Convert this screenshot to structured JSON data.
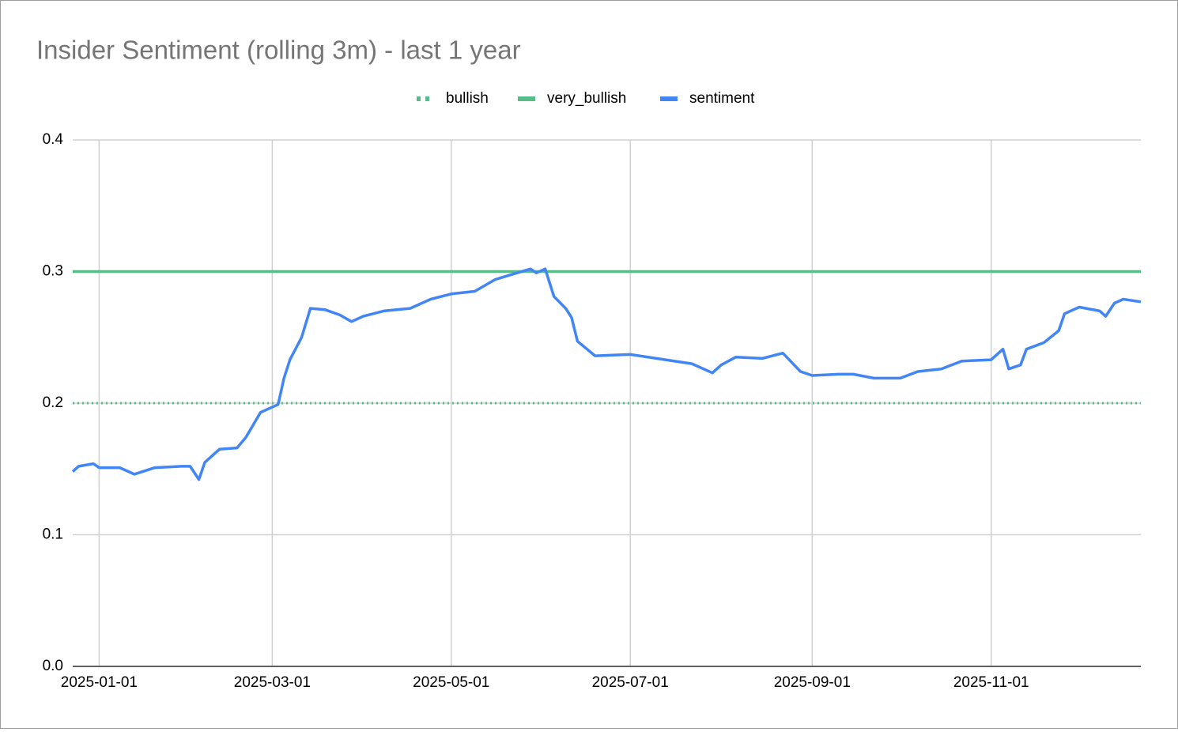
{
  "chart_data": {
    "type": "line",
    "title": "Insider Sentiment (rolling 3m) - last 1 year",
    "x": [
      "2024-12-23",
      "2024-12-25",
      "2024-12-30",
      "2025-01-01",
      "2025-01-08",
      "2025-01-13",
      "2025-01-20",
      "2025-01-29",
      "2025-02-01",
      "2025-02-04",
      "2025-02-06",
      "2025-02-11",
      "2025-02-17",
      "2025-02-20",
      "2025-02-25",
      "2025-03-03",
      "2025-03-05",
      "2025-03-07",
      "2025-03-11",
      "2025-03-14",
      "2025-03-19",
      "2025-03-24",
      "2025-03-28",
      "2025-04-01",
      "2025-04-08",
      "2025-04-17",
      "2025-04-24",
      "2025-05-01",
      "2025-05-09",
      "2025-05-16",
      "2025-05-22",
      "2025-05-28",
      "2025-05-30",
      "2025-06-02",
      "2025-06-05",
      "2025-06-09",
      "2025-06-11",
      "2025-06-13",
      "2025-06-19",
      "2025-07-01",
      "2025-07-13",
      "2025-07-22",
      "2025-07-29",
      "2025-08-01",
      "2025-08-06",
      "2025-08-15",
      "2025-08-22",
      "2025-08-28",
      "2025-09-01",
      "2025-09-10",
      "2025-09-15",
      "2025-09-22",
      "2025-10-01",
      "2025-10-07",
      "2025-10-15",
      "2025-10-22",
      "2025-11-01",
      "2025-11-05",
      "2025-11-07",
      "2025-11-11",
      "2025-11-13",
      "2025-11-19",
      "2025-11-24",
      "2025-11-26",
      "2025-12-01",
      "2025-12-08",
      "2025-12-10",
      "2025-12-13",
      "2025-12-16",
      "2025-12-22"
    ],
    "series": [
      {
        "name": "bullish",
        "color": "#57bb8a",
        "dash": "dotted",
        "values": [
          0.2,
          0.2,
          0.2,
          0.2,
          0.2,
          0.2,
          0.2,
          0.2,
          0.2,
          0.2,
          0.2,
          0.2,
          0.2,
          0.2,
          0.2,
          0.2,
          0.2,
          0.2,
          0.2,
          0.2,
          0.2,
          0.2,
          0.2,
          0.2,
          0.2,
          0.2,
          0.2,
          0.2,
          0.2,
          0.2,
          0.2,
          0.2,
          0.2,
          0.2,
          0.2,
          0.2,
          0.2,
          0.2,
          0.2,
          0.2,
          0.2,
          0.2,
          0.2,
          0.2,
          0.2,
          0.2,
          0.2,
          0.2,
          0.2,
          0.2,
          0.2,
          0.2,
          0.2,
          0.2,
          0.2,
          0.2,
          0.2,
          0.2,
          0.2,
          0.2,
          0.2,
          0.2,
          0.2,
          0.2,
          0.2,
          0.2,
          0.2,
          0.2,
          0.2,
          0.2
        ]
      },
      {
        "name": "very_bullish",
        "color": "#57bb8a",
        "dash": "solid",
        "values": [
          0.3,
          0.3,
          0.3,
          0.3,
          0.3,
          0.3,
          0.3,
          0.3,
          0.3,
          0.3,
          0.3,
          0.3,
          0.3,
          0.3,
          0.3,
          0.3,
          0.3,
          0.3,
          0.3,
          0.3,
          0.3,
          0.3,
          0.3,
          0.3,
          0.3,
          0.3,
          0.3,
          0.3,
          0.3,
          0.3,
          0.3,
          0.3,
          0.3,
          0.3,
          0.3,
          0.3,
          0.3,
          0.3,
          0.3,
          0.3,
          0.3,
          0.3,
          0.3,
          0.3,
          0.3,
          0.3,
          0.3,
          0.3,
          0.3,
          0.3,
          0.3,
          0.3,
          0.3,
          0.3,
          0.3,
          0.3,
          0.3,
          0.3,
          0.3,
          0.3,
          0.3,
          0.3,
          0.3,
          0.3,
          0.3,
          0.3,
          0.3,
          0.3,
          0.3,
          0.3
        ]
      },
      {
        "name": "sentiment",
        "color": "#4285f4",
        "dash": "solid",
        "values": [
          0.148,
          0.152,
          0.154,
          0.151,
          0.151,
          0.146,
          0.151,
          0.152,
          0.152,
          0.142,
          0.155,
          0.165,
          0.166,
          0.174,
          0.193,
          0.199,
          0.219,
          0.233,
          0.25,
          0.272,
          0.271,
          0.267,
          0.262,
          0.266,
          0.27,
          0.272,
          0.279,
          0.283,
          0.285,
          0.294,
          0.298,
          0.302,
          0.299,
          0.302,
          0.281,
          0.272,
          0.265,
          0.247,
          0.236,
          0.237,
          0.233,
          0.23,
          0.223,
          0.229,
          0.235,
          0.234,
          0.238,
          0.224,
          0.221,
          0.222,
          0.222,
          0.219,
          0.219,
          0.224,
          0.226,
          0.232,
          0.233,
          0.241,
          0.226,
          0.229,
          0.241,
          0.246,
          0.255,
          0.268,
          0.273,
          0.27,
          0.266,
          0.276,
          0.279,
          0.277
        ]
      }
    ],
    "xlim": [
      "2024-12-23",
      "2025-12-22"
    ],
    "xticks": [
      "2025-01-01",
      "2025-03-01",
      "2025-05-01",
      "2025-07-01",
      "2025-09-01",
      "2025-11-01"
    ],
    "ylim": [
      0,
      0.4
    ],
    "yticks": [
      {
        "value": 0,
        "label": "0.0"
      },
      0.1,
      0.2,
      0.3,
      0.4
    ],
    "grid": true,
    "legend": "top"
  }
}
